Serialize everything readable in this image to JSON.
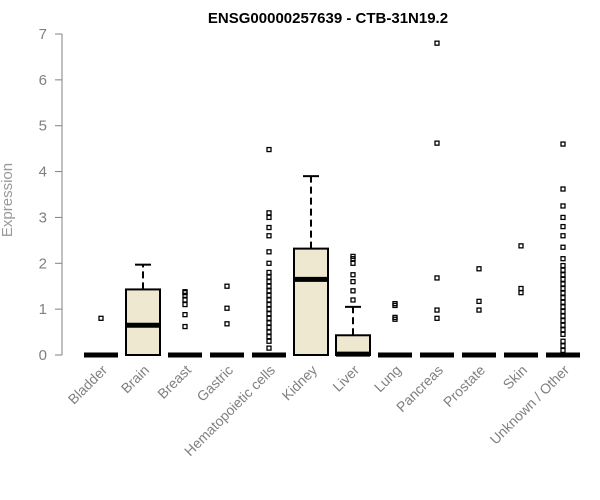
{
  "chart_data": {
    "type": "box",
    "title": "ENSG00000257639 - CTB-31N19.2",
    "xlabel": "",
    "ylabel": "Expression",
    "ylim": [
      0,
      7
    ],
    "yticks": [
      "0",
      "1",
      "2",
      "3",
      "4",
      "5",
      "6",
      "7"
    ],
    "categories": [
      "Bladder",
      "Brain",
      "Breast",
      "Gastric",
      "Hematopoietic cells",
      "Kidney",
      "Liver",
      "Lung",
      "Pancreas",
      "Prostate",
      "Skin",
      "Unknown / Other"
    ],
    "box_fill": "#efe8d0",
    "grid": false,
    "boxes": [
      {
        "q1": 0,
        "median": 0,
        "q3": 0,
        "whisker_low": 0,
        "whisker_high": 0,
        "outliers": [
          0.8
        ]
      },
      {
        "q1": 0,
        "median": 0.65,
        "q3": 1.43,
        "whisker_low": 0,
        "whisker_high": 1.97,
        "outliers": []
      },
      {
        "q1": 0,
        "median": 0,
        "q3": 0,
        "whisker_low": 0,
        "whisker_high": 0,
        "outliers": [
          0.62,
          0.88,
          1.1,
          1.2,
          1.3,
          1.36,
          1.38
        ]
      },
      {
        "q1": 0,
        "median": 0,
        "q3": 0,
        "whisker_low": 0,
        "whisker_high": 0,
        "outliers": [
          0.68,
          1.02,
          1.5
        ]
      },
      {
        "q1": 0,
        "median": 0,
        "q3": 0,
        "whisker_low": 0,
        "whisker_high": 0,
        "outliers": [
          0.15,
          0.3,
          0.4,
          0.5,
          0.6,
          0.7,
          0.8,
          0.9,
          1.0,
          1.1,
          1.2,
          1.3,
          1.4,
          1.5,
          1.6,
          1.7,
          1.8,
          2.0,
          2.25,
          2.6,
          2.78,
          3.0,
          3.1,
          4.48
        ]
      },
      {
        "q1": 0,
        "median": 1.65,
        "q3": 2.32,
        "whisker_low": 0,
        "whisker_high": 3.9,
        "outliers": []
      },
      {
        "q1": 0,
        "median": 0.02,
        "q3": 0.43,
        "whisker_low": 0,
        "whisker_high": 1.05,
        "outliers": [
          1.2,
          1.4,
          1.6,
          1.75,
          2.0,
          2.1,
          2.15
        ]
      },
      {
        "q1": 0,
        "median": 0,
        "q3": 0,
        "whisker_low": 0,
        "whisker_high": 0,
        "outliers": [
          0.78,
          0.82,
          1.08,
          1.12
        ]
      },
      {
        "q1": 0,
        "median": 0,
        "q3": 0,
        "whisker_low": 0,
        "whisker_high": 0,
        "outliers": [
          0.8,
          0.98,
          1.68,
          4.62,
          6.8
        ]
      },
      {
        "q1": 0,
        "median": 0,
        "q3": 0,
        "whisker_low": 0,
        "whisker_high": 0,
        "outliers": [
          0.98,
          1.17,
          1.88
        ]
      },
      {
        "q1": 0,
        "median": 0,
        "q3": 0,
        "whisker_low": 0,
        "whisker_high": 0,
        "outliers": [
          1.36,
          1.45,
          2.38
        ]
      },
      {
        "q1": 0,
        "median": 0,
        "q3": 0,
        "whisker_low": 0,
        "whisker_high": 0,
        "outliers": [
          0.1,
          0.2,
          0.3,
          0.45,
          0.55,
          0.65,
          0.75,
          0.85,
          0.95,
          1.05,
          1.15,
          1.25,
          1.35,
          1.45,
          1.55,
          1.65,
          1.75,
          1.85,
          1.95,
          2.1,
          2.35,
          2.6,
          2.8,
          3.0,
          3.25,
          3.62,
          4.6
        ]
      }
    ]
  }
}
